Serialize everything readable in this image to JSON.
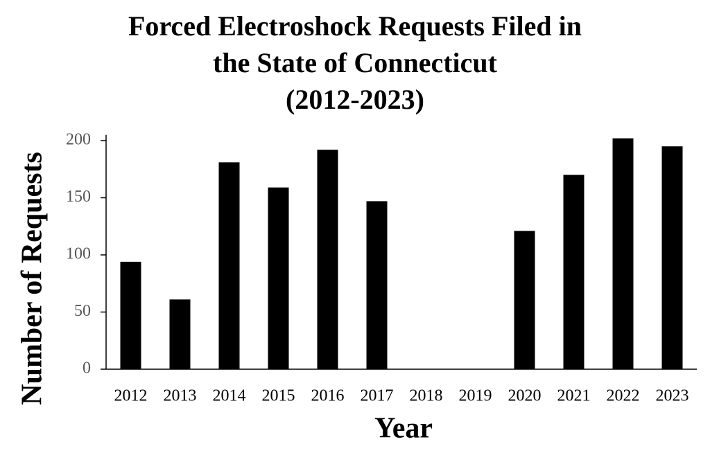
{
  "chart_data": {
    "type": "bar",
    "title": [
      "Forced Electroshock Requests Filed in",
      "the State of Connecticut",
      "(2012-2023)"
    ],
    "x_label": "Year",
    "y_label": "Number of Requests",
    "categories": [
      "2012",
      "2013",
      "2014",
      "2015",
      "2016",
      "2017",
      "2018",
      "2019",
      "2020",
      "2021",
      "2022",
      "2023"
    ],
    "values": [
      94,
      61,
      181,
      159,
      192,
      147,
      null,
      null,
      121,
      170,
      202,
      195
    ],
    "color": "#000000",
    "ylim": [
      0,
      205
    ],
    "yticks": [
      0,
      50,
      100,
      150,
      200
    ],
    "grid": false
  }
}
